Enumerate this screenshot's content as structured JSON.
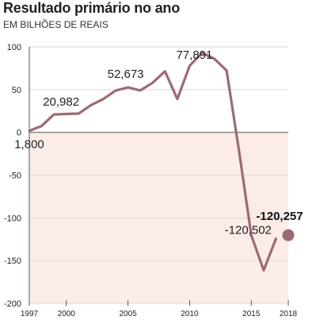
{
  "header": {
    "title": "Resultado primário no ano",
    "subtitle": "EM BILHÕES DE REAIS"
  },
  "colors": {
    "line": "#9b6b73",
    "negative_fill": "#fbece8",
    "zero_line": "#8a8a8a",
    "grid": "#d9d9d9",
    "axis": "#555555"
  },
  "chart_data": {
    "type": "line",
    "title": "Resultado primário no ano",
    "subtitle": "EM BILHÕES DE REAIS",
    "xlabel": "",
    "ylabel": "",
    "xlim": [
      1997,
      2018
    ],
    "ylim": [
      -200,
      100
    ],
    "y_ticks": [
      100,
      50,
      0,
      -50,
      -100,
      -150,
      -200
    ],
    "y_tick_labels": [
      "100",
      "50",
      "0",
      "-50",
      "-100",
      "-150",
      "-200"
    ],
    "x_ticks": [
      1997,
      2000,
      2005,
      2010,
      2015,
      2018
    ],
    "x_tick_labels": [
      "1997",
      "2000",
      "2005",
      "2010",
      "2015",
      "2018"
    ],
    "grid": true,
    "x": [
      1997,
      1998,
      1999,
      2000,
      2001,
      2002,
      2003,
      2004,
      2005,
      2006,
      2007,
      2008,
      2009,
      2010,
      2011,
      2012,
      2013,
      2014,
      2015,
      2016,
      2017
    ],
    "series": [
      {
        "values": [
          1.8,
          7.5,
          20.982,
          21.5,
          22,
          31.9,
          39,
          48.8,
          52.673,
          49,
          58,
          71.4,
          39,
          77.891,
          93,
          86.1,
          72.2,
          -21.1,
          -120.502,
          -161.3,
          -124.4
        ]
      }
    ],
    "highlight_point": {
      "x": 2018,
      "y": -120.257
    },
    "annotations": [
      {
        "text": "1,800",
        "x": 1997,
        "y": 1.8
      },
      {
        "text": "20,982",
        "x": 1999,
        "y": 20.982
      },
      {
        "text": "52,673",
        "x": 2005,
        "y": 52.673
      },
      {
        "text": "77,891",
        "x": 2010,
        "y": 77.891
      },
      {
        "text": "-120,502",
        "x": 2015,
        "y": -120.502
      },
      {
        "text": "-120,257",
        "x": 2018,
        "y": -120.257,
        "bold": true
      }
    ]
  }
}
